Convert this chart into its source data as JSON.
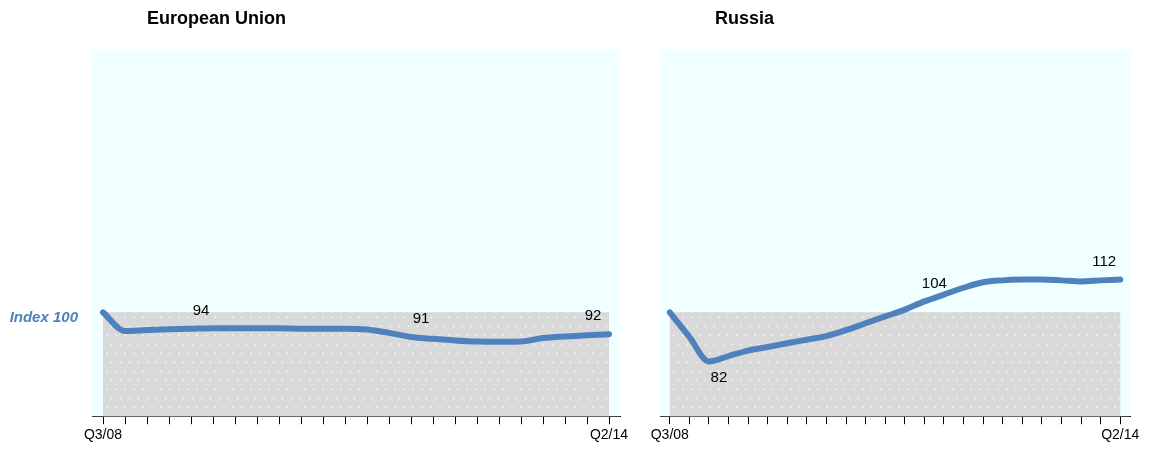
{
  "chart_data": [
    {
      "type": "line",
      "title": "European Union",
      "categories": [
        "Q3/08",
        null,
        null,
        null,
        null,
        null,
        null,
        null,
        null,
        null,
        null,
        null,
        null,
        null,
        null,
        null,
        null,
        null,
        null,
        null,
        null,
        null,
        null,
        "Q2/14"
      ],
      "series": [
        {
          "color": "#4f81bd",
          "values": [
            100,
            93.2,
            93.5,
            93.8,
            94,
            94.2,
            94.2,
            94.2,
            94.2,
            94,
            94,
            94,
            93.7,
            92.5,
            91,
            90.3,
            89.7,
            89.3,
            89.2,
            89.3,
            90.6,
            91.2,
            91.6,
            92
          ],
          "value_labels": [
            null,
            null,
            null,
            null,
            "94",
            null,
            null,
            null,
            null,
            null,
            null,
            null,
            null,
            null,
            "91",
            null,
            null,
            null,
            null,
            null,
            null,
            null,
            null,
            "92"
          ]
        }
      ],
      "ylim": [
        62,
        196
      ],
      "bands": [
        {
          "axis": "y",
          "from": 62,
          "to": 100,
          "label": "Index 100",
          "color": "#d9d9d9"
        }
      ],
      "marker": "none",
      "tick_labels": "x"
    },
    {
      "type": "line",
      "title": "Russia",
      "categories": [
        "Q3/08",
        null,
        null,
        null,
        null,
        null,
        null,
        null,
        null,
        null,
        null,
        null,
        null,
        null,
        null,
        null,
        null,
        null,
        null,
        null,
        null,
        null,
        null,
        "Q2/14"
      ],
      "series": [
        {
          "color": "#4f81bd",
          "values": [
            100,
            91,
            82,
            84,
            86,
            87.3,
            88.7,
            90,
            91.3,
            93.5,
            96,
            98.5,
            101,
            104,
            106.5,
            109,
            111,
            111.7,
            112,
            112,
            111.7,
            111.3,
            111.7,
            112
          ],
          "value_labels": [
            null,
            null,
            "82",
            null,
            null,
            null,
            null,
            null,
            null,
            null,
            null,
            null,
            null,
            "104",
            null,
            null,
            null,
            null,
            null,
            null,
            null,
            null,
            null,
            "112"
          ]
        }
      ],
      "ylim": [
        62,
        196
      ],
      "bands": [
        {
          "axis": "y",
          "from": 62,
          "to": 100,
          "color": "#d9d9d9"
        }
      ],
      "marker": "none",
      "tick_labels": "x"
    }
  ]
}
